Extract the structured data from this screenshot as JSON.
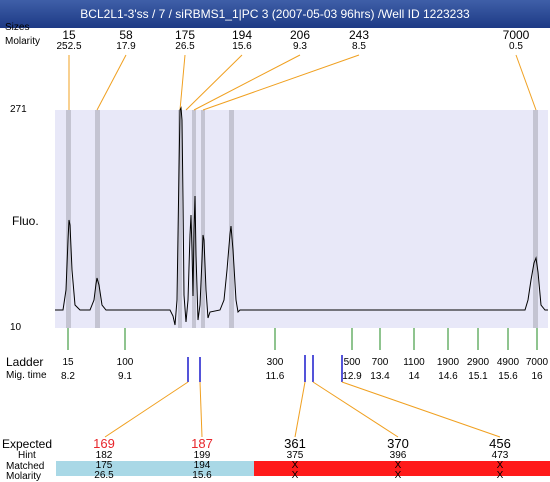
{
  "window": {
    "title": "BCL2L1-3'ss / 7 / siRBMS1_1|PC 3 (2007-05-03 96hrs) /Well ID 1223233"
  },
  "header": {
    "sizes_label": "Sizes",
    "molarity_label": "Molarity"
  },
  "peaks": [
    {
      "size": "15",
      "molarity": "252.5"
    },
    {
      "size": "58",
      "molarity": "17.9"
    },
    {
      "size": "175",
      "molarity": "26.5"
    },
    {
      "size": "194",
      "molarity": "15.6"
    },
    {
      "size": "206",
      "molarity": "9.3"
    },
    {
      "size": "243",
      "molarity": "8.5"
    },
    {
      "size": "7000",
      "molarity": "0.5"
    }
  ],
  "axis": {
    "fluo_label": "Fluo.",
    "y_max": "271",
    "y_min": "10"
  },
  "ladder": {
    "ladder_label": "Ladder",
    "migtime_label": "Mig. time",
    "sizes": [
      "15",
      "100",
      "300",
      "500",
      "700",
      "1100",
      "1900",
      "2900",
      "4900",
      "7000"
    ],
    "times": [
      "8.2",
      "9.1",
      "11.6",
      "12.9",
      "13.4",
      "14",
      "14.6",
      "15.1",
      "15.6",
      "16"
    ]
  },
  "expected": {
    "expected_label": "Expected",
    "hint_label": "Hint",
    "matched_label": "Matched",
    "molarity_label": "Molarity",
    "rows": [
      {
        "expected": "169",
        "hint": "182",
        "matched": "175",
        "molarity": "26.5",
        "color": "#e8262b"
      },
      {
        "expected": "187",
        "hint": "199",
        "matched": "194",
        "molarity": "15.6",
        "color": "#e8262b"
      },
      {
        "expected": "361",
        "hint": "375",
        "matched": "X",
        "molarity": "X",
        "color": "#000000"
      },
      {
        "expected": "370",
        "hint": "396",
        "matched": "X",
        "molarity": "X",
        "color": "#000000"
      },
      {
        "expected": "456",
        "hint": "473",
        "matched": "X",
        "molarity": "X",
        "color": "#000000"
      }
    ]
  },
  "colors": {
    "plot_bg": "#e8e8f8",
    "matched_bg": "#a9d8e6",
    "unmatched_bg": "#ff1a1a",
    "connector": "#f0a020",
    "ladder_tick": "#1f8a1f",
    "marker": "#1a1acc"
  }
}
